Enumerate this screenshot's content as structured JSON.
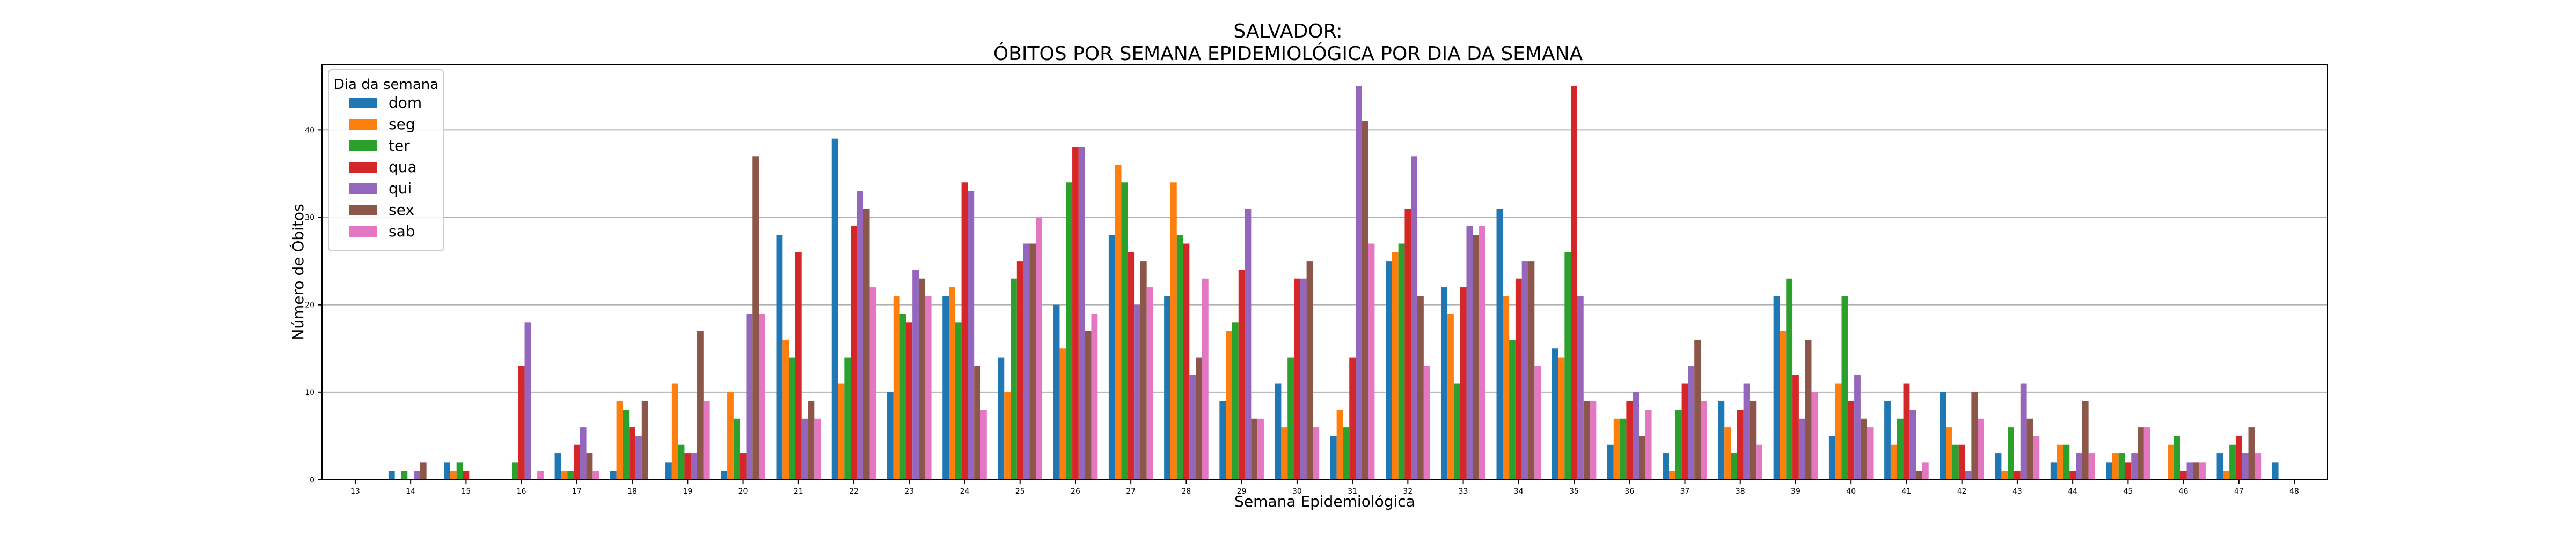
{
  "chart_data": {
    "type": "bar",
    "title": [
      "SALVADOR:",
      "ÓBITOS POR SEMANA EPIDEMIOLÓGICA POR DIA DA SEMANA"
    ],
    "xlabel": "Semana Epidemiológica",
    "ylabel": "Número de Óbitos",
    "ylim": [
      0,
      47.5
    ],
    "yticks": [
      0,
      10,
      20,
      30,
      40
    ],
    "grid": "y",
    "legend": {
      "title": "Dia da semana",
      "placement": "top-left"
    },
    "categories": [
      "13",
      "14",
      "15",
      "16",
      "17",
      "18",
      "19",
      "20",
      "21",
      "22",
      "23",
      "24",
      "25",
      "26",
      "27",
      "28",
      "29",
      "30",
      "31",
      "32",
      "33",
      "34",
      "35",
      "36",
      "37",
      "38",
      "39",
      "40",
      "41",
      "42",
      "43",
      "44",
      "45",
      "46",
      "47",
      "48"
    ],
    "series": [
      {
        "name": "dom",
        "color": "#1f77b4",
        "values": [
          0,
          1,
          2,
          0,
          3,
          1,
          2,
          1,
          28,
          39,
          10,
          21,
          14,
          20,
          28,
          21,
          9,
          11,
          5,
          25,
          22,
          31,
          15,
          4,
          3,
          9,
          21,
          5,
          9,
          10,
          3,
          2,
          2,
          0,
          3,
          2
        ]
      },
      {
        "name": "seg",
        "color": "#ff7f0e",
        "values": [
          0,
          0,
          1,
          0,
          1,
          9,
          11,
          10,
          16,
          11,
          21,
          22,
          10,
          15,
          36,
          34,
          17,
          6,
          8,
          26,
          19,
          21,
          14,
          7,
          1,
          6,
          17,
          11,
          4,
          6,
          1,
          4,
          3,
          4,
          1,
          0
        ]
      },
      {
        "name": "ter",
        "color": "#2ca02c",
        "values": [
          0,
          1,
          2,
          2,
          1,
          8,
          4,
          7,
          14,
          14,
          19,
          18,
          23,
          34,
          34,
          28,
          18,
          14,
          6,
          27,
          11,
          16,
          26,
          7,
          8,
          3,
          23,
          21,
          7,
          4,
          6,
          4,
          3,
          5,
          4,
          0
        ]
      },
      {
        "name": "qua",
        "color": "#d62728",
        "values": [
          0,
          0,
          1,
          13,
          4,
          6,
          3,
          3,
          26,
          29,
          18,
          34,
          25,
          38,
          26,
          27,
          24,
          23,
          14,
          31,
          22,
          23,
          45,
          9,
          11,
          8,
          12,
          9,
          11,
          4,
          1,
          1,
          2,
          1,
          5,
          0
        ]
      },
      {
        "name": "qui",
        "color": "#9467bd",
        "values": [
          0,
          1,
          0,
          18,
          6,
          5,
          3,
          19,
          7,
          33,
          24,
          33,
          27,
          38,
          20,
          12,
          31,
          23,
          45,
          37,
          29,
          25,
          21,
          10,
          13,
          11,
          7,
          12,
          8,
          1,
          11,
          3,
          3,
          2,
          3,
          0
        ]
      },
      {
        "name": "sex",
        "color": "#8c564b",
        "values": [
          0,
          2,
          0,
          0,
          3,
          9,
          17,
          37,
          9,
          31,
          23,
          13,
          27,
          17,
          25,
          14,
          7,
          25,
          41,
          21,
          28,
          25,
          9,
          5,
          16,
          9,
          16,
          7,
          1,
          10,
          7,
          9,
          6,
          2,
          6,
          0
        ]
      },
      {
        "name": "sab",
        "color": "#e377c2",
        "values": [
          0,
          0,
          0,
          1,
          1,
          0,
          9,
          19,
          7,
          22,
          21,
          8,
          30,
          19,
          22,
          23,
          7,
          6,
          27,
          13,
          29,
          13,
          9,
          8,
          9,
          4,
          10,
          6,
          2,
          7,
          5,
          3,
          6,
          2,
          3,
          0
        ]
      }
    ]
  }
}
